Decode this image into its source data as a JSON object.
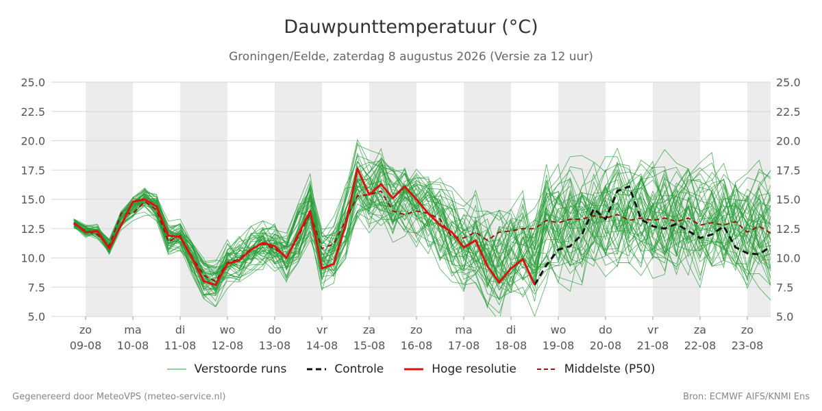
{
  "chart_data": {
    "type": "line",
    "title": "Dauwpunttemperatuur (°C)",
    "subtitle": "Groningen/Eelde, zaterdag  8 augustus 2026 (Versie za 12 uur)",
    "ylim": [
      5.0,
      25.0
    ],
    "yticks": [
      "5.0",
      "7.5",
      "10.0",
      "12.5",
      "15.0",
      "17.5",
      "20.0",
      "22.5",
      "25.0"
    ],
    "xticks": [
      {
        "day": "zo",
        "date": "09-08"
      },
      {
        "day": "ma",
        "date": "10-08"
      },
      {
        "day": "di",
        "date": "11-08"
      },
      {
        "day": "wo",
        "date": "12-08"
      },
      {
        "day": "do",
        "date": "13-08"
      },
      {
        "day": "vr",
        "date": "14-08"
      },
      {
        "day": "za",
        "date": "15-08"
      },
      {
        "day": "zo",
        "date": "16-08"
      },
      {
        "day": "ma",
        "date": "17-08"
      },
      {
        "day": "di",
        "date": "18-08"
      },
      {
        "day": "wo",
        "date": "19-08"
      },
      {
        "day": "do",
        "date": "20-08"
      },
      {
        "day": "vr",
        "date": "21-08"
      },
      {
        "day": "za",
        "date": "22-08"
      },
      {
        "day": "zo",
        "date": "23-08"
      }
    ],
    "x_start_day": -0.25,
    "x_end_day": 14.5,
    "grid": true,
    "legend_position": "bottom",
    "series": [
      {
        "name": "Hoge resolutie",
        "color": "#dd1111",
        "style": "solid",
        "x": [
          -0.25,
          0,
          0.25,
          0.5,
          1.0,
          1.25,
          1.5,
          1.75,
          2.0,
          2.25,
          2.5,
          2.75,
          3.0,
          3.25,
          3.5,
          3.75,
          4.0,
          4.25,
          4.5,
          4.75,
          5.0,
          5.25,
          5.5,
          5.75,
          6.0,
          6.25,
          6.5,
          6.75,
          7.0,
          7.25,
          7.5,
          7.75,
          8.0,
          8.25,
          8.5,
          8.75,
          9.0,
          9.25,
          9.5
        ],
        "values": [
          13.0,
          12.2,
          12.3,
          10.8,
          14.8,
          15.0,
          14.4,
          11.9,
          11.8,
          10.0,
          8.0,
          7.7,
          9.5,
          9.8,
          10.7,
          11.3,
          11.0,
          10.0,
          12.0,
          14.0,
          9.1,
          9.5,
          12.8,
          17.6,
          15.4,
          16.3,
          15.1,
          16.1,
          15.0,
          13.8,
          12.8,
          12.2,
          10.9,
          11.5,
          9.3,
          7.9,
          9.1,
          9.9,
          7.7
        ]
      },
      {
        "name": "Controle",
        "color": "#111111",
        "style": "dashed",
        "x": [
          9.5,
          9.75,
          10.0,
          10.25,
          10.5,
          10.75,
          11.0,
          11.25,
          11.5,
          11.75,
          12.0,
          12.25,
          12.5,
          12.75,
          13.0,
          13.25,
          13.5,
          13.75,
          14.0,
          14.25,
          14.5
        ],
        "values": [
          7.7,
          9.4,
          10.7,
          11.0,
          12.0,
          14.2,
          13.3,
          15.7,
          16.1,
          13.3,
          12.7,
          12.5,
          12.9,
          12.3,
          11.7,
          12.0,
          12.7,
          10.9,
          10.4,
          10.3,
          11.0
        ]
      },
      {
        "name": "Middelste (P50)",
        "color": "#991111",
        "style": "dashed",
        "x": [
          -0.25,
          0,
          0.25,
          0.5,
          0.75,
          1.0,
          1.25,
          1.5,
          1.75,
          2.0,
          2.25,
          2.5,
          2.75,
          3.0,
          3.25,
          3.5,
          3.75,
          4.0,
          4.25,
          4.5,
          4.75,
          5.0,
          5.25,
          5.5,
          5.75,
          6.0,
          6.25,
          6.5,
          6.75,
          7.0,
          7.25,
          7.5,
          7.75,
          8.0,
          8.25,
          8.5,
          8.75,
          9.0,
          9.25,
          9.5,
          9.75,
          10.0,
          10.25,
          10.5,
          10.75,
          11.0,
          11.25,
          11.5,
          11.75,
          12.0,
          12.25,
          12.5,
          12.75,
          13.0,
          13.25,
          13.5,
          13.75,
          14.0,
          14.25,
          14.5
        ],
        "values": [
          12.9,
          12.3,
          12.0,
          11.0,
          13.8,
          13.8,
          14.8,
          14.1,
          11.4,
          11.9,
          10.1,
          8.5,
          8.0,
          9.6,
          9.9,
          10.8,
          11.2,
          10.8,
          10.0,
          11.8,
          13.8,
          10.8,
          11.2,
          13.2,
          15.3,
          15.4,
          15.7,
          14.0,
          13.7,
          14.0,
          13.8,
          13.3,
          11.8,
          11.7,
          12.2,
          11.5,
          12.2,
          12.3,
          12.5,
          12.5,
          13.2,
          13.0,
          13.3,
          13.3,
          13.6,
          13.4,
          13.7,
          13.2,
          13.4,
          13.2,
          13.4,
          13.1,
          13.4,
          12.8,
          13.0,
          12.8,
          13.1,
          12.2,
          12.7,
          12.1
        ]
      }
    ],
    "ensemble": {
      "name": "Verstoorde runs",
      "color": "#2a9d3a",
      "members": 50
    }
  },
  "legend": [
    {
      "label": "Verstoorde runs",
      "color": "#2a9d3a",
      "style": "thin"
    },
    {
      "label": "Controle",
      "color": "#111111",
      "style": "dashed"
    },
    {
      "label": "Hoge resolutie",
      "color": "#dd1111",
      "style": "solid"
    },
    {
      "label": "Middelste (P50)",
      "color": "#991111",
      "style": "dashed"
    }
  ],
  "footer": {
    "left": "Gegenereerd door MeteoVPS (meteo-service.nl)",
    "right": "Bron: ECMWF AIFS/KNMI Ens"
  }
}
